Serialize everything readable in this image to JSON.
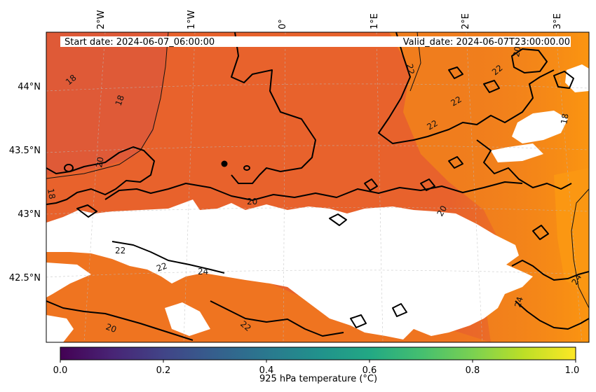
{
  "header": {
    "start_date": "Start date: 2024-06-07_06:00:00",
    "valid_date": "Valid_date: 2024-06-07T23:00:00.00"
  },
  "map": {
    "lon_labels": [
      "2°W",
      "1°W",
      "0°",
      "1°E",
      "2°E",
      "3°E"
    ],
    "lat_labels": [
      "44°N",
      "43.5°N",
      "43°N",
      "42.5°N"
    ],
    "contour_labels": [
      "18",
      "18",
      "18",
      "18",
      "20",
      "20",
      "20",
      "20",
      "20",
      "22",
      "22",
      "22",
      "22",
      "22",
      "22",
      "22",
      "24",
      "24",
      "24"
    ],
    "colors": {
      "field_dark": "#df5a37",
      "field_mid": "#e8622c",
      "field_orange": "#f07d1d",
      "field_bright": "#f99012",
      "no_data": "#ffffff",
      "contour": "#000000"
    }
  },
  "colorbar": {
    "label": "925 hPa temperature (°C)",
    "ticks": [
      "0.0",
      "0.2",
      "0.4",
      "0.6",
      "0.8",
      "1.0"
    ],
    "colormap": "viridis",
    "range": [
      0.0,
      1.0
    ]
  }
}
